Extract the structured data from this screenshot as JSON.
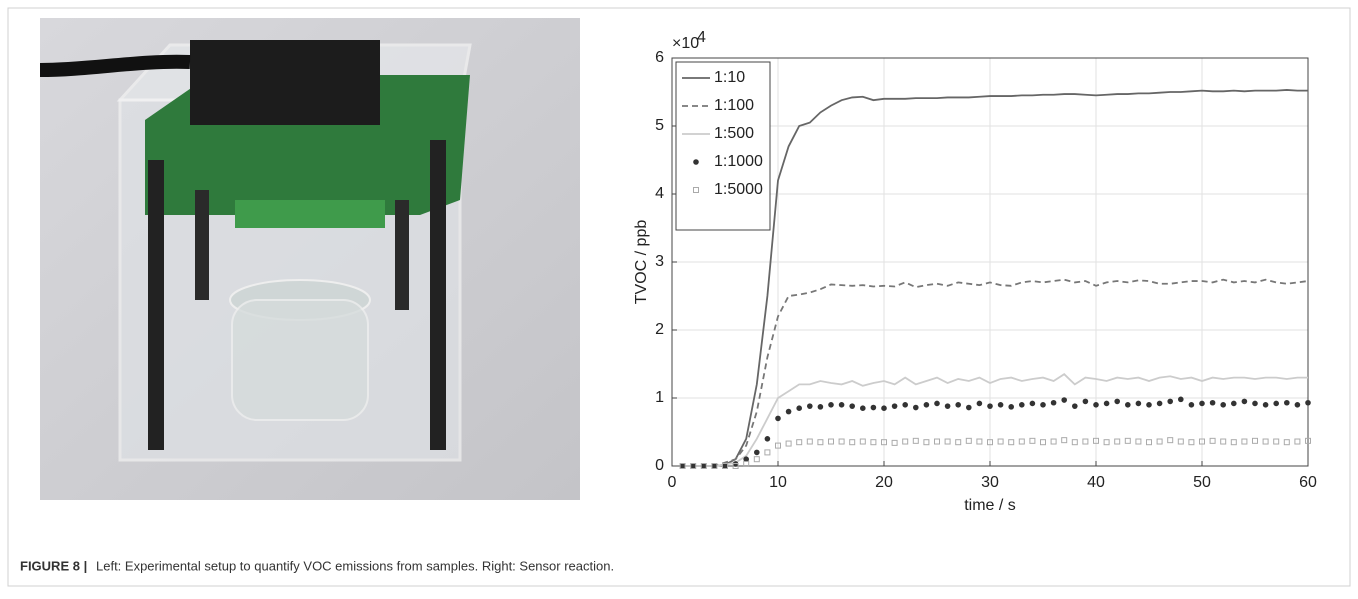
{
  "figure": {
    "label": "FIGURE 8 |",
    "caption": "Left: Experimental setup to quantify VOC emissions from samples. Right: Sensor reaction."
  },
  "chart_data": {
    "type": "line",
    "xlabel": "time / s",
    "ylabel": "TVOC / ppb",
    "multiplier_base": "×10",
    "multiplier_exp": "4",
    "xlim": [
      0,
      60
    ],
    "xticks": [
      0,
      10,
      20,
      30,
      40,
      50,
      60
    ],
    "ylim": [
      0,
      6
    ],
    "yticks": [
      0,
      1,
      2,
      3,
      4,
      5,
      6
    ],
    "grid": true,
    "legend": "upper left",
    "x": [
      1,
      2,
      3,
      4,
      5,
      6,
      7,
      8,
      9,
      10,
      11,
      12,
      13,
      14,
      15,
      16,
      17,
      18,
      19,
      20,
      21,
      22,
      23,
      24,
      25,
      26,
      27,
      28,
      29,
      30,
      31,
      32,
      33,
      34,
      35,
      36,
      37,
      38,
      39,
      40,
      41,
      42,
      43,
      44,
      45,
      46,
      47,
      48,
      49,
      50,
      51,
      52,
      53,
      54,
      55,
      56,
      57,
      58,
      59,
      60
    ],
    "series": [
      {
        "name": "1:10",
        "color": "#666666",
        "style": "solid",
        "values": [
          0,
          0,
          0,
          0,
          0.02,
          0.1,
          0.4,
          1.2,
          2.5,
          4.2,
          4.7,
          5.0,
          5.05,
          5.2,
          5.3,
          5.38,
          5.42,
          5.43,
          5.38,
          5.4,
          5.4,
          5.4,
          5.41,
          5.41,
          5.41,
          5.42,
          5.42,
          5.42,
          5.43,
          5.44,
          5.44,
          5.44,
          5.45,
          5.45,
          5.46,
          5.46,
          5.47,
          5.47,
          5.46,
          5.45,
          5.46,
          5.47,
          5.47,
          5.48,
          5.48,
          5.49,
          5.5,
          5.5,
          5.51,
          5.52,
          5.51,
          5.51,
          5.52,
          5.51,
          5.52,
          5.52,
          5.52,
          5.53,
          5.52,
          5.52
        ]
      },
      {
        "name": "1:100",
        "color": "#777777",
        "style": "dashed",
        "values": [
          0,
          0,
          0,
          0,
          0.05,
          0.1,
          0.3,
          0.8,
          1.6,
          2.2,
          2.5,
          2.52,
          2.55,
          2.6,
          2.67,
          2.66,
          2.65,
          2.66,
          2.64,
          2.65,
          2.64,
          2.7,
          2.63,
          2.66,
          2.68,
          2.65,
          2.7,
          2.68,
          2.66,
          2.7,
          2.66,
          2.65,
          2.7,
          2.72,
          2.7,
          2.72,
          2.74,
          2.7,
          2.72,
          2.65,
          2.7,
          2.72,
          2.7,
          2.73,
          2.72,
          2.68,
          2.68,
          2.7,
          2.72,
          2.72,
          2.7,
          2.74,
          2.7,
          2.72,
          2.7,
          2.74,
          2.7,
          2.68,
          2.7,
          2.72
        ]
      },
      {
        "name": "1:500",
        "color": "#cccccc",
        "style": "solid",
        "values": [
          0,
          0,
          0,
          0,
          0.02,
          0.05,
          0.15,
          0.4,
          0.7,
          1.0,
          1.1,
          1.2,
          1.2,
          1.25,
          1.22,
          1.2,
          1.25,
          1.18,
          1.22,
          1.25,
          1.2,
          1.3,
          1.2,
          1.25,
          1.3,
          1.22,
          1.28,
          1.25,
          1.3,
          1.22,
          1.28,
          1.3,
          1.25,
          1.28,
          1.3,
          1.25,
          1.35,
          1.2,
          1.3,
          1.28,
          1.25,
          1.3,
          1.28,
          1.3,
          1.25,
          1.3,
          1.32,
          1.28,
          1.3,
          1.25,
          1.3,
          1.28,
          1.3,
          1.3,
          1.28,
          1.3,
          1.3,
          1.28,
          1.3,
          1.3
        ]
      },
      {
        "name": "1:1000",
        "color": "#333333",
        "style": "dot",
        "values": [
          0,
          0,
          0,
          0,
          0,
          0.03,
          0.1,
          0.2,
          0.4,
          0.7,
          0.8,
          0.85,
          0.88,
          0.87,
          0.9,
          0.9,
          0.88,
          0.85,
          0.86,
          0.85,
          0.88,
          0.9,
          0.86,
          0.9,
          0.92,
          0.88,
          0.9,
          0.86,
          0.92,
          0.88,
          0.9,
          0.87,
          0.9,
          0.92,
          0.9,
          0.93,
          0.97,
          0.88,
          0.95,
          0.9,
          0.92,
          0.95,
          0.9,
          0.92,
          0.9,
          0.92,
          0.95,
          0.98,
          0.9,
          0.92,
          0.93,
          0.9,
          0.92,
          0.95,
          0.92,
          0.9,
          0.92,
          0.93,
          0.9,
          0.93
        ]
      },
      {
        "name": "1:5000",
        "color": "#aaaaaa",
        "style": "square",
        "values": [
          0,
          0,
          0,
          0,
          0,
          0,
          0.03,
          0.1,
          0.2,
          0.3,
          0.33,
          0.35,
          0.36,
          0.35,
          0.36,
          0.36,
          0.35,
          0.36,
          0.35,
          0.35,
          0.34,
          0.36,
          0.37,
          0.35,
          0.36,
          0.36,
          0.35,
          0.37,
          0.36,
          0.35,
          0.36,
          0.35,
          0.36,
          0.37,
          0.35,
          0.36,
          0.38,
          0.35,
          0.36,
          0.37,
          0.35,
          0.36,
          0.37,
          0.36,
          0.35,
          0.36,
          0.38,
          0.36,
          0.35,
          0.36,
          0.37,
          0.36,
          0.35,
          0.36,
          0.37,
          0.36,
          0.36,
          0.35,
          0.36,
          0.37
        ]
      }
    ]
  }
}
